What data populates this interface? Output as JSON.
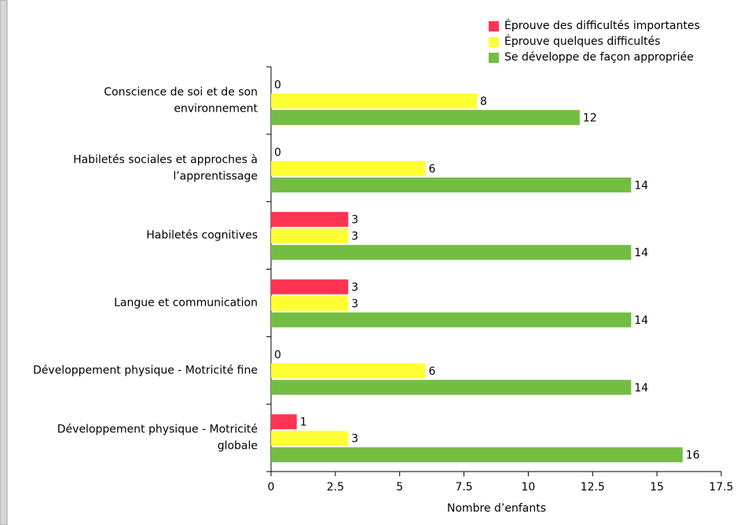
{
  "chart_data": {
    "type": "hbar",
    "categories": [
      [
        "Conscience de soi et de son",
        "environnement"
      ],
      [
        "Habiletés sociales et approches à",
        "l’apprentissage"
      ],
      [
        "Habiletés cognitives"
      ],
      [
        "Langue et communication"
      ],
      [
        "Développement physique - Motricité fine"
      ],
      [
        "Développement physique - Motricité",
        "globale"
      ]
    ],
    "series": [
      {
        "name": "Éprouve des difficultés importantes",
        "color": "#ff3352",
        "values": [
          0,
          0,
          3,
          3,
          0,
          1
        ]
      },
      {
        "name": "Éprouve quelques difficultés",
        "color": "#ffff33",
        "values": [
          8,
          6,
          3,
          3,
          6,
          3
        ]
      },
      {
        "name": "Se développe de façon appropriée",
        "color": "#74bd43",
        "values": [
          12,
          14,
          14,
          14,
          14,
          16
        ]
      }
    ],
    "xlabel": "Nombre d’enfants",
    "xlim": [
      0,
      17.5
    ],
    "xticks": [
      0,
      2.5,
      5,
      7.5,
      10,
      12.5,
      15,
      17.5
    ],
    "legend": "top-right"
  }
}
